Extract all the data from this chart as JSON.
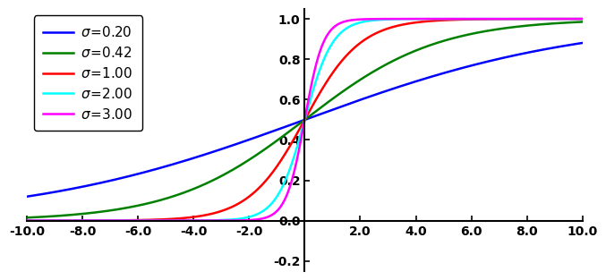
{
  "sigmas": [
    0.2,
    0.42,
    1.0,
    2.0,
    3.0
  ],
  "colors": [
    "blue",
    "green",
    "red",
    "cyan",
    "magenta"
  ],
  "xmin": -10.0,
  "xmax": 10.0,
  "ymin": -0.25,
  "ymax": 1.05,
  "xticks": [
    -10.0,
    -8.0,
    -6.0,
    -4.0,
    -2.0,
    0.0,
    2.0,
    4.0,
    6.0,
    8.0,
    10.0
  ],
  "yticks": [
    -0.2,
    0.0,
    0.2,
    0.4,
    0.6,
    0.8,
    1.0
  ],
  "n_points": 2000,
  "line_width": 1.8,
  "legend_fontsize": 11,
  "tick_fontsize": 10,
  "background_color": "white"
}
